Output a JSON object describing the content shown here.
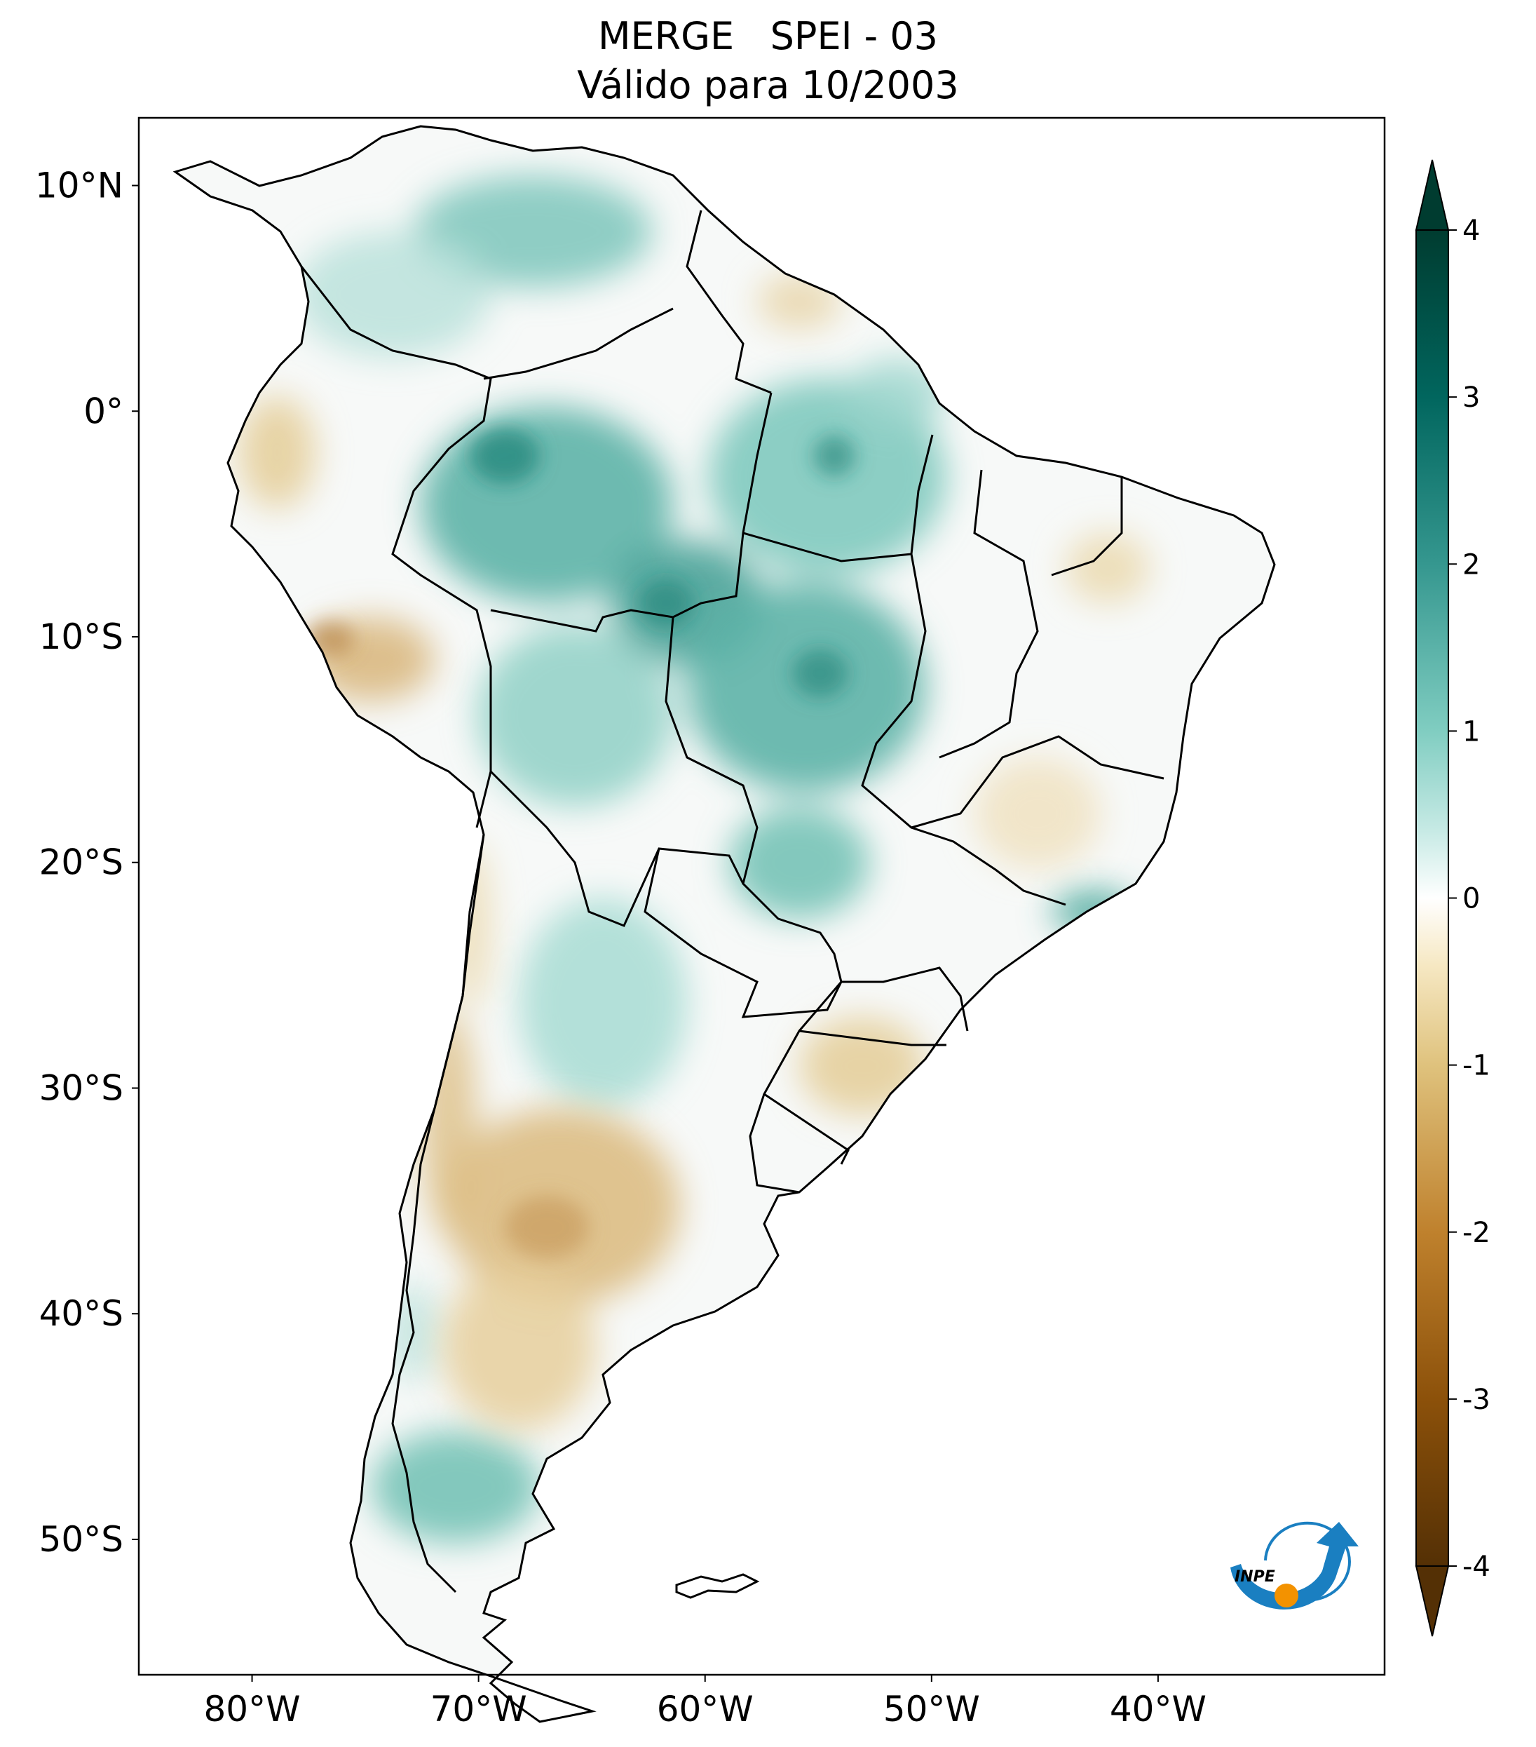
{
  "title": {
    "line1": "MERGE   SPEI - 03",
    "line2": "Válido para 10/2003"
  },
  "map": {
    "lat_labels": [
      "10°N",
      "0°",
      "10°S",
      "20°S",
      "30°S",
      "40°S",
      "50°S"
    ],
    "lon_labels": [
      "80°W",
      "70°W",
      "60°W",
      "50°W",
      "40°W"
    ],
    "lat_values": [
      10,
      0,
      -10,
      -20,
      -30,
      -40,
      -50
    ],
    "lon_values": [
      -80,
      -70,
      -60,
      -50,
      -40
    ],
    "extent": {
      "lon_min": -85,
      "lon_max": -30,
      "lat_min": -56,
      "lat_max": 13
    }
  },
  "colorbar": {
    "labels": [
      "4",
      "3",
      "2",
      "1",
      "0",
      "-1",
      "-2",
      "-3",
      "-4"
    ],
    "values": [
      4,
      3,
      2,
      1,
      0,
      -1,
      -2,
      -3,
      -4
    ],
    "range": [
      -4,
      4
    ],
    "colors": [
      "#543005",
      "#8c510a",
      "#bf812d",
      "#dfc27d",
      "#f6e8c3",
      "#ffffff",
      "#c7eae5",
      "#80cdc1",
      "#35978f",
      "#01665e",
      "#003c30"
    ]
  },
  "logo": {
    "text": "INPE",
    "colors": {
      "arc": "#1a7fc1",
      "dot": "#f39200"
    }
  },
  "colors": {
    "wet": "#35978f",
    "dry": "#d4ae6e",
    "border": "#000000"
  }
}
